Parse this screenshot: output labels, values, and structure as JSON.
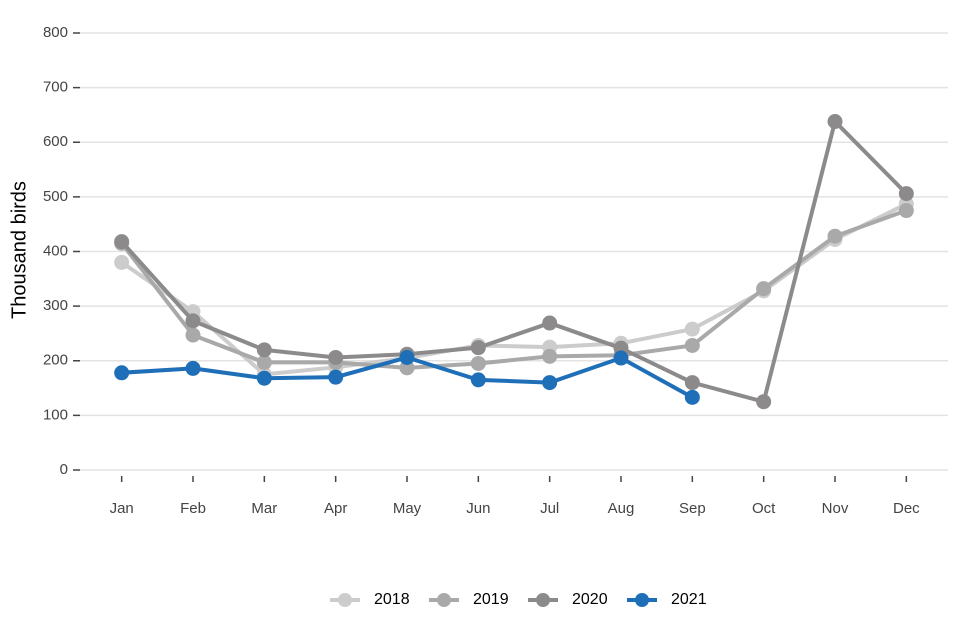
{
  "chart_data": {
    "type": "line",
    "y_label": "Thousand birds",
    "categories": [
      "Jan",
      "Feb",
      "Mar",
      "Apr",
      "May",
      "Jun",
      "Jul",
      "Aug",
      "Sep",
      "Oct",
      "Nov",
      "Dec"
    ],
    "series": [
      {
        "name": "2018",
        "color": "#cccccc",
        "values": [
          380,
          290,
          175,
          188,
          205,
          228,
          225,
          232,
          258,
          328,
          422,
          487
        ]
      },
      {
        "name": "2019",
        "color": "#a9a9a9",
        "values": [
          415,
          247,
          197,
          197,
          187,
          195,
          208,
          210,
          228,
          332,
          428,
          475
        ]
      },
      {
        "name": "2020",
        "color": "#8c8a8b",
        "values": [
          418,
          273,
          220,
          206,
          212,
          224,
          269,
          223,
          160,
          125,
          638,
          506
        ]
      },
      {
        "name": "2021",
        "color": "#1f6fb8",
        "values": [
          178,
          186,
          168,
          170,
          206,
          165,
          160,
          205,
          133,
          null,
          null,
          null
        ]
      }
    ],
    "ylim": [
      0,
      800
    ],
    "yticks": [
      0,
      100,
      200,
      300,
      400,
      500,
      600,
      700,
      800
    ],
    "grid": true,
    "legend": "bottom"
  }
}
